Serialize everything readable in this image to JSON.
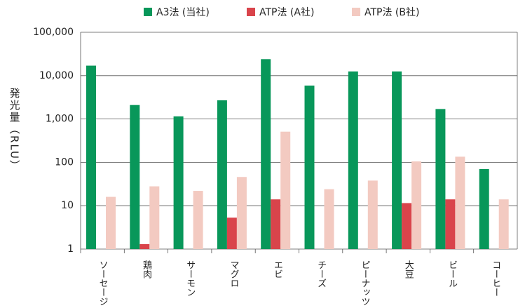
{
  "chart_data": {
    "type": "bar",
    "legend": "top",
    "log": true,
    "grid": true,
    "ylabel": "発光量（RLU）",
    "categories": [
      "ソーセージ",
      "鶏肉",
      "サーモン",
      "マグロ",
      "エビ",
      "チーズ",
      "ピーナッツ",
      "大豆",
      "ビール",
      "コーヒー"
    ],
    "series": [
      {
        "name": "A3法 (当社)",
        "color": "#08975a",
        "values": [
          17000,
          2100,
          1150,
          2700,
          24000,
          5900,
          12500,
          12500,
          1700,
          70
        ]
      },
      {
        "name": "ATP法 (A社)",
        "color": "#d9444b",
        "values": [
          null,
          1.3,
          null,
          5.3,
          14,
          null,
          null,
          11.5,
          14,
          null
        ]
      },
      {
        "name": "ATP法 (B社)",
        "color": "#f3cac1",
        "values": [
          16,
          28,
          22,
          46,
          510,
          24,
          38,
          105,
          135,
          14
        ]
      }
    ],
    "ylim": [
      1,
      100000
    ],
    "yticks": [
      1,
      10,
      100,
      {
        "value": 1000,
        "label": "1,000"
      },
      {
        "value": 10000,
        "label": "10,000"
      },
      {
        "value": 100000,
        "label": "100,000"
      }
    ]
  }
}
